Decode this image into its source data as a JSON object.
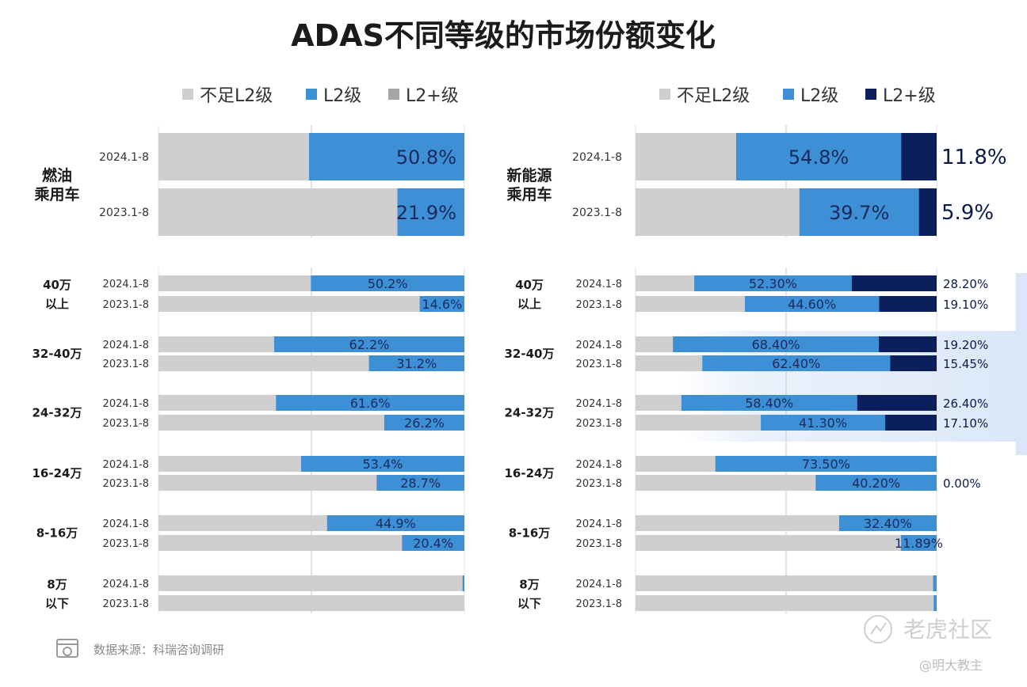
{
  "title": "ADAS不同等级的市场份额变化",
  "colors": {
    "below": "#cfcfcf",
    "l2": "#3d8fd6",
    "l2plus_left": "#a6a6a6",
    "l2plus_right": "#0b1f5c",
    "grid": "#c7c7c7"
  },
  "legend_left": [
    "不足L2级",
    "L2级",
    "L2+级"
  ],
  "legend_right": [
    "不足L2级",
    "L2级",
    "L2+级"
  ],
  "source": "数据来源：科瑞咨询调研",
  "watermark": {
    "brand": "老虎社区",
    "author": "@明大教主"
  },
  "chart_data": [
    {
      "type": "bar",
      "stacked": true,
      "orientation": "horizontal",
      "panel": "left",
      "series_names": [
        "不足L2级",
        "L2级",
        "L2+级"
      ],
      "xlim": [
        0,
        100
      ],
      "groups": [
        {
          "label": "燃油\n乘用车",
          "big": true,
          "rows": [
            {
              "period": "2024.1-8",
              "l2": 50.8,
              "l2plus": 0,
              "label": "50.8%"
            },
            {
              "period": "2023.1-8",
              "l2": 21.9,
              "l2plus": 0,
              "label": "21.9%"
            }
          ]
        },
        {
          "label": "40万\n以上",
          "rows": [
            {
              "period": "2024.1-8",
              "l2": 50.2,
              "l2plus": 0,
              "label": "50.2%"
            },
            {
              "period": "2023.1-8",
              "l2": 14.6,
              "l2plus": 0,
              "label": "14.6%"
            }
          ]
        },
        {
          "label": "32-40万",
          "rows": [
            {
              "period": "2024.1-8",
              "l2": 62.2,
              "l2plus": 0,
              "label": "62.2%"
            },
            {
              "period": "2023.1-8",
              "l2": 31.2,
              "l2plus": 0,
              "label": "31.2%"
            }
          ]
        },
        {
          "label": "24-32万",
          "rows": [
            {
              "period": "2024.1-8",
              "l2": 61.6,
              "l2plus": 0,
              "label": "61.6%"
            },
            {
              "period": "2023.1-8",
              "l2": 26.2,
              "l2plus": 0,
              "label": "26.2%"
            }
          ]
        },
        {
          "label": "16-24万",
          "rows": [
            {
              "period": "2024.1-8",
              "l2": 53.4,
              "l2plus": 0,
              "label": "53.4%"
            },
            {
              "period": "2023.1-8",
              "l2": 28.7,
              "l2plus": 0,
              "label": "28.7%"
            }
          ]
        },
        {
          "label": "8-16万",
          "rows": [
            {
              "period": "2024.1-8",
              "l2": 44.9,
              "l2plus": 0,
              "label": "44.9%"
            },
            {
              "period": "2023.1-8",
              "l2": 20.4,
              "l2plus": 0,
              "label": "20.4%"
            }
          ]
        },
        {
          "label": "8万\n以下",
          "rows": [
            {
              "period": "2024.1-8",
              "l2": 0.6,
              "l2plus": 0,
              "label": ""
            },
            {
              "period": "2023.1-8",
              "l2": 0,
              "l2plus": 0,
              "label": ""
            }
          ]
        }
      ]
    },
    {
      "type": "bar",
      "stacked": true,
      "orientation": "horizontal",
      "panel": "right",
      "series_names": [
        "不足L2级",
        "L2级",
        "L2+级"
      ],
      "xlim": [
        0,
        100
      ],
      "groups": [
        {
          "label": "新能源\n乘用车",
          "big": true,
          "rows": [
            {
              "period": "2024.1-8",
              "l2": 54.8,
              "l2plus": 11.8,
              "label": "54.8%",
              "plus_label": "11.8%"
            },
            {
              "period": "2023.1-8",
              "l2": 39.7,
              "l2plus": 5.9,
              "label": "39.7%",
              "plus_label": "5.9%"
            }
          ]
        },
        {
          "label": "40万\n以上",
          "rows": [
            {
              "period": "2024.1-8",
              "l2": 52.3,
              "l2plus": 28.2,
              "label": "52.30%",
              "plus_label": "28.20%"
            },
            {
              "period": "2023.1-8",
              "l2": 44.6,
              "l2plus": 19.1,
              "label": "44.60%",
              "plus_label": "19.10%"
            }
          ]
        },
        {
          "label": "32-40万",
          "rows": [
            {
              "period": "2024.1-8",
              "l2": 68.4,
              "l2plus": 19.2,
              "label": "68.40%",
              "plus_label": "19.20%"
            },
            {
              "period": "2023.1-8",
              "l2": 62.4,
              "l2plus": 15.45,
              "label": "62.40%",
              "plus_label": "15.45%"
            }
          ]
        },
        {
          "label": "24-32万",
          "rows": [
            {
              "period": "2024.1-8",
              "l2": 58.4,
              "l2plus": 26.4,
              "label": "58.40%",
              "plus_label": "26.40%"
            },
            {
              "period": "2023.1-8",
              "l2": 41.3,
              "l2plus": 17.1,
              "label": "41.30%",
              "plus_label": "17.10%"
            }
          ]
        },
        {
          "label": "16-24万",
          "rows": [
            {
              "period": "2024.1-8",
              "l2": 73.5,
              "l2plus": 0,
              "label": "73.50%",
              "plus_label": ""
            },
            {
              "period": "2023.1-8",
              "l2": 40.2,
              "l2plus": 0,
              "label": "40.20%",
              "plus_label": "0.00%"
            }
          ]
        },
        {
          "label": "8-16万",
          "rows": [
            {
              "period": "2024.1-8",
              "l2": 32.4,
              "l2plus": 0,
              "label": "32.40%",
              "plus_label": ""
            },
            {
              "period": "2023.1-8",
              "l2": 11.89,
              "l2plus": 0,
              "label": "11.89%",
              "plus_label": ""
            }
          ]
        },
        {
          "label": "8万\n以下",
          "rows": [
            {
              "period": "2024.1-8",
              "l2": 1.2,
              "l2plus": 0,
              "label": "",
              "plus_label": ""
            },
            {
              "period": "2023.1-8",
              "l2": 1.0,
              "l2plus": 0,
              "label": "",
              "plus_label": ""
            }
          ]
        }
      ]
    }
  ]
}
